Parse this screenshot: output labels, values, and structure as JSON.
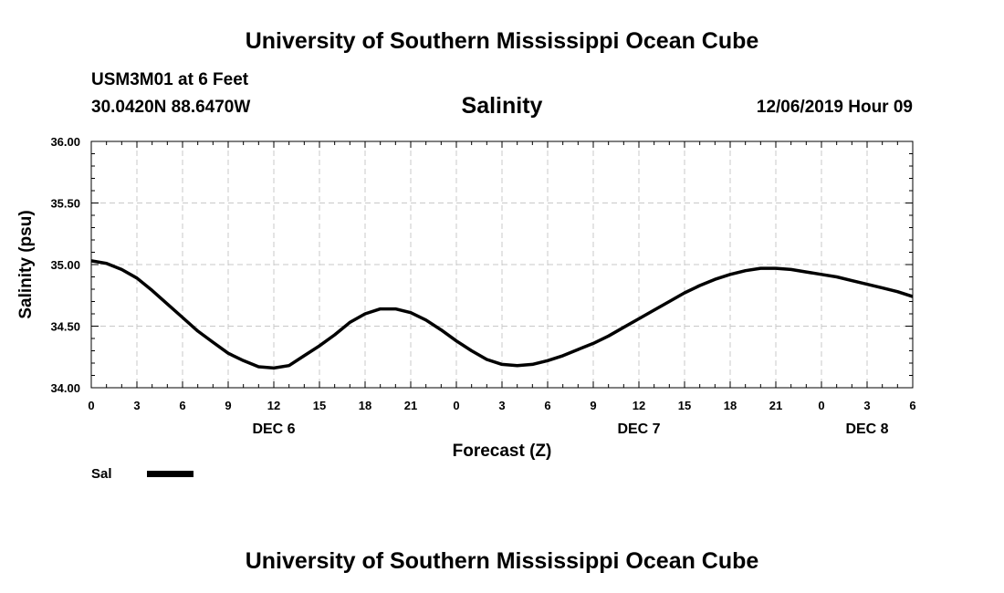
{
  "header": {
    "title": "University of Southern Mississippi Ocean Cube",
    "station": "USM3M01 at 6 Feet",
    "coordinates": "30.0420N 88.6470W",
    "datetime": "12/06/2019 Hour 09"
  },
  "footer": {
    "title": "University of Southern Mississippi Ocean Cube"
  },
  "chart_data": {
    "type": "line",
    "title": "Salinity",
    "xlabel": "Forecast (Z)",
    "ylabel": "Salinity (psu)",
    "ylim": [
      34.0,
      36.0
    ],
    "xlim": [
      0,
      54
    ],
    "x_tick_labels": [
      "0",
      "3",
      "6",
      "9",
      "12",
      "15",
      "18",
      "21",
      "0",
      "3",
      "6",
      "9",
      "12",
      "15",
      "18",
      "21",
      "0",
      "3",
      "6"
    ],
    "x_day_labels": [
      {
        "x": 12,
        "label": "DEC 6"
      },
      {
        "x": 36,
        "label": "DEC 7"
      },
      {
        "x": 51,
        "label": "DEC 8"
      }
    ],
    "y_tick_labels": [
      "34.00",
      "34.50",
      "35.00",
      "35.50",
      "36.00"
    ],
    "grid": true,
    "legend_position": "bottom-left",
    "series": [
      {
        "name": "Sal",
        "color": "#000000",
        "x": [
          0,
          1,
          2,
          3,
          4,
          5,
          6,
          7,
          8,
          9,
          10,
          11,
          12,
          13,
          14,
          15,
          16,
          17,
          18,
          19,
          20,
          21,
          22,
          23,
          24,
          25,
          26,
          27,
          28,
          29,
          30,
          31,
          32,
          33,
          34,
          35,
          36,
          37,
          38,
          39,
          40,
          41,
          42,
          43,
          44,
          45,
          46,
          47,
          48,
          49,
          50,
          51,
          52,
          53,
          54
        ],
        "y": [
          35.03,
          35.01,
          34.96,
          34.89,
          34.79,
          34.68,
          34.57,
          34.46,
          34.37,
          34.28,
          34.22,
          34.17,
          34.16,
          34.18,
          34.26,
          34.34,
          34.43,
          34.53,
          34.6,
          34.64,
          34.64,
          34.61,
          34.55,
          34.47,
          34.38,
          34.3,
          34.23,
          34.19,
          34.18,
          34.19,
          34.22,
          34.26,
          34.31,
          34.36,
          34.42,
          34.49,
          34.56,
          34.63,
          34.7,
          34.77,
          34.83,
          34.88,
          34.92,
          34.95,
          34.97,
          34.97,
          34.96,
          34.94,
          34.92,
          34.9,
          34.87,
          34.84,
          34.81,
          34.78,
          34.74
        ]
      }
    ]
  }
}
